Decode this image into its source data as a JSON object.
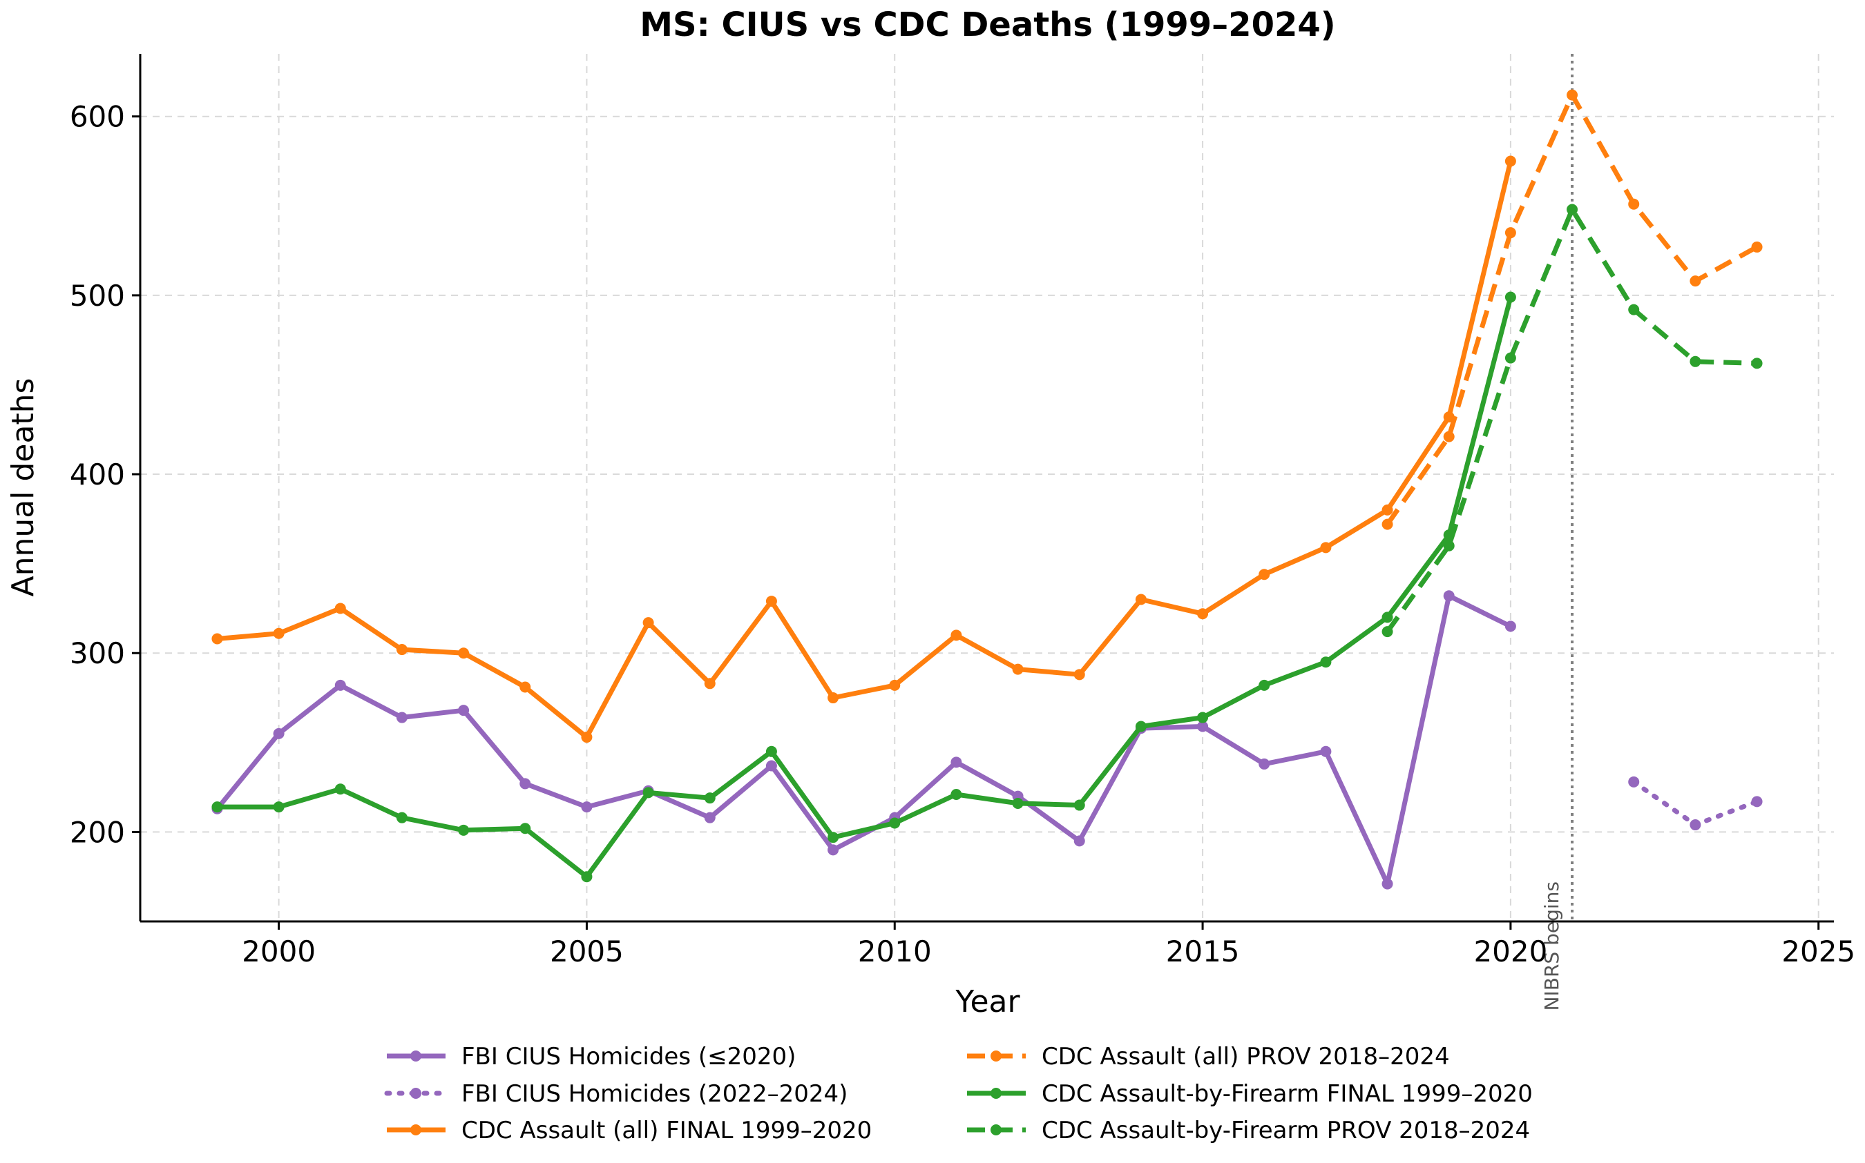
{
  "chart_data": {
    "type": "line",
    "title": "MS: CIUS vs CDC Deaths (1999–2024)",
    "xlabel": "Year",
    "ylabel": "Annual deaths",
    "xlim": [
      1997.75,
      2025.25
    ],
    "ylim": [
      150,
      635
    ],
    "xticks": [
      2000,
      2005,
      2010,
      2015,
      2020,
      2025
    ],
    "yticks": [
      200,
      300,
      400,
      500,
      600
    ],
    "grid": true,
    "legend_position": "bottom, below axes, two columns",
    "annotations": [
      {
        "text": "NIBRS begins",
        "x": 2021,
        "style": "vertical dotted line"
      }
    ],
    "series": [
      {
        "name": "FBI CIUS Homicides (≤2020)",
        "color": "#9467bd",
        "style": "solid",
        "x": [
          1999,
          2000,
          2001,
          2002,
          2003,
          2004,
          2005,
          2006,
          2007,
          2008,
          2009,
          2010,
          2011,
          2012,
          2013,
          2014,
          2015,
          2016,
          2017,
          2018,
          2019,
          2020
        ],
        "y": [
          213,
          255,
          282,
          264,
          268,
          227,
          214,
          223,
          208,
          237,
          190,
          208,
          239,
          220,
          195,
          258,
          259,
          238,
          245,
          171,
          332,
          315
        ]
      },
      {
        "name": "FBI CIUS Homicides (2022–2024)",
        "color": "#9467bd",
        "style": "dotted",
        "x": [
          2022,
          2023,
          2024
        ],
        "y": [
          228,
          204,
          217
        ]
      },
      {
        "name": "CDC Assault (all) FINAL 1999–2020",
        "color": "#ff7f0e",
        "style": "solid",
        "x": [
          1999,
          2000,
          2001,
          2002,
          2003,
          2004,
          2005,
          2006,
          2007,
          2008,
          2009,
          2010,
          2011,
          2012,
          2013,
          2014,
          2015,
          2016,
          2017,
          2018,
          2019,
          2020
        ],
        "y": [
          308,
          311,
          325,
          302,
          300,
          281,
          253,
          317,
          283,
          329,
          275,
          282,
          310,
          291,
          288,
          330,
          322,
          344,
          359,
          380,
          432,
          575
        ]
      },
      {
        "name": "CDC Assault (all) PROV 2018–2024",
        "color": "#ff7f0e",
        "style": "dashed",
        "x": [
          2018,
          2019,
          2020,
          2021,
          2022,
          2023,
          2024
        ],
        "y": [
          372,
          421,
          535,
          612,
          551,
          508,
          527
        ]
      },
      {
        "name": "CDC Assault-by-Firearm FINAL 1999–2020",
        "color": "#2ca02c",
        "style": "solid",
        "x": [
          1999,
          2000,
          2001,
          2002,
          2003,
          2004,
          2005,
          2006,
          2007,
          2008,
          2009,
          2010,
          2011,
          2012,
          2013,
          2014,
          2015,
          2016,
          2017,
          2018,
          2019,
          2020
        ],
        "y": [
          214,
          214,
          224,
          208,
          201,
          202,
          175,
          222,
          219,
          245,
          197,
          205,
          221,
          216,
          215,
          259,
          264,
          282,
          295,
          320,
          366,
          499
        ]
      },
      {
        "name": "CDC Assault-by-Firearm PROV 2018–2024",
        "color": "#2ca02c",
        "style": "dashed",
        "x": [
          2018,
          2019,
          2020,
          2021,
          2022,
          2023,
          2024
        ],
        "y": [
          312,
          360,
          465,
          548,
          492,
          463,
          462
        ]
      }
    ]
  }
}
